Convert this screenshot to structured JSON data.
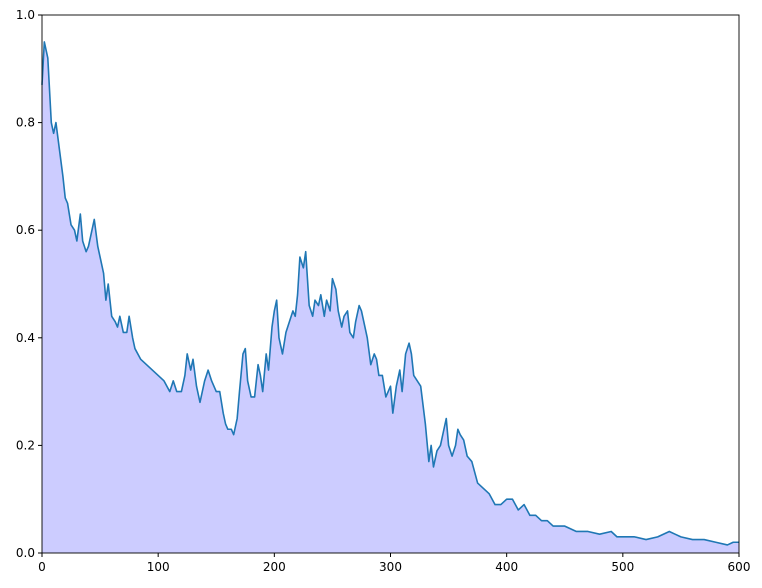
{
  "chart_data": {
    "type": "area",
    "x": [
      0,
      2,
      5,
      8,
      10,
      12,
      15,
      18,
      20,
      22,
      25,
      28,
      30,
      33,
      35,
      38,
      40,
      43,
      45,
      48,
      50,
      53,
      55,
      57,
      60,
      63,
      65,
      67,
      70,
      73,
      75,
      78,
      80,
      85,
      90,
      95,
      100,
      105,
      110,
      113,
      116,
      120,
      123,
      125,
      128,
      130,
      133,
      136,
      140,
      143,
      146,
      150,
      153,
      156,
      158,
      160,
      163,
      165,
      168,
      170,
      173,
      175,
      177,
      180,
      183,
      186,
      188,
      190,
      193,
      195,
      198,
      200,
      202,
      204,
      207,
      210,
      213,
      216,
      218,
      220,
      222,
      225,
      227,
      230,
      233,
      235,
      238,
      240,
      243,
      245,
      248,
      250,
      253,
      255,
      258,
      260,
      263,
      265,
      268,
      270,
      273,
      275,
      278,
      280,
      283,
      286,
      288,
      290,
      293,
      296,
      300,
      302,
      305,
      308,
      310,
      313,
      316,
      318,
      320,
      323,
      326,
      330,
      333,
      335,
      337,
      340,
      343,
      345,
      348,
      350,
      353,
      356,
      358,
      360,
      363,
      366,
      370,
      375,
      380,
      385,
      390,
      395,
      400,
      405,
      410,
      415,
      420,
      425,
      430,
      435,
      440,
      445,
      450,
      460,
      470,
      480,
      490,
      495,
      500,
      510,
      520,
      530,
      540,
      545,
      550,
      560,
      570,
      580,
      590,
      595,
      600
    ],
    "values": [
      0.87,
      0.95,
      0.92,
      0.8,
      0.78,
      0.8,
      0.75,
      0.7,
      0.66,
      0.65,
      0.61,
      0.6,
      0.58,
      0.63,
      0.58,
      0.56,
      0.57,
      0.6,
      0.62,
      0.57,
      0.55,
      0.52,
      0.47,
      0.5,
      0.44,
      0.43,
      0.42,
      0.44,
      0.41,
      0.41,
      0.44,
      0.4,
      0.38,
      0.36,
      0.35,
      0.34,
      0.33,
      0.32,
      0.3,
      0.32,
      0.3,
      0.3,
      0.33,
      0.37,
      0.34,
      0.36,
      0.31,
      0.28,
      0.32,
      0.34,
      0.32,
      0.3,
      0.3,
      0.26,
      0.24,
      0.23,
      0.23,
      0.22,
      0.25,
      0.3,
      0.37,
      0.38,
      0.32,
      0.29,
      0.29,
      0.35,
      0.33,
      0.3,
      0.37,
      0.34,
      0.42,
      0.45,
      0.47,
      0.4,
      0.37,
      0.41,
      0.43,
      0.45,
      0.44,
      0.48,
      0.55,
      0.53,
      0.56,
      0.46,
      0.44,
      0.47,
      0.46,
      0.48,
      0.44,
      0.47,
      0.45,
      0.51,
      0.49,
      0.45,
      0.42,
      0.44,
      0.45,
      0.41,
      0.4,
      0.43,
      0.46,
      0.45,
      0.42,
      0.4,
      0.35,
      0.37,
      0.36,
      0.33,
      0.33,
      0.29,
      0.31,
      0.26,
      0.31,
      0.34,
      0.3,
      0.37,
      0.39,
      0.37,
      0.33,
      0.32,
      0.31,
      0.24,
      0.17,
      0.2,
      0.16,
      0.19,
      0.2,
      0.22,
      0.25,
      0.2,
      0.18,
      0.2,
      0.23,
      0.22,
      0.21,
      0.18,
      0.17,
      0.13,
      0.12,
      0.11,
      0.09,
      0.09,
      0.1,
      0.1,
      0.08,
      0.09,
      0.07,
      0.07,
      0.06,
      0.06,
      0.05,
      0.05,
      0.05,
      0.04,
      0.04,
      0.035,
      0.04,
      0.03,
      0.03,
      0.03,
      0.025,
      0.03,
      0.04,
      0.035,
      0.03,
      0.025,
      0.025,
      0.02,
      0.015,
      0.02,
      0.02
    ],
    "color": "#1f77b4",
    "fill": "#ccccff",
    "xlim": [
      0,
      600
    ],
    "xticks": [
      0,
      100,
      200,
      300,
      400,
      500,
      600
    ],
    "ylim": [
      0,
      1
    ],
    "yticks": [
      {
        "value": 0,
        "label": "0.0"
      },
      0.2,
      0.4,
      0.6,
      0.8,
      {
        "value": 1,
        "label": "1.0"
      }
    ],
    "grid": false
  }
}
